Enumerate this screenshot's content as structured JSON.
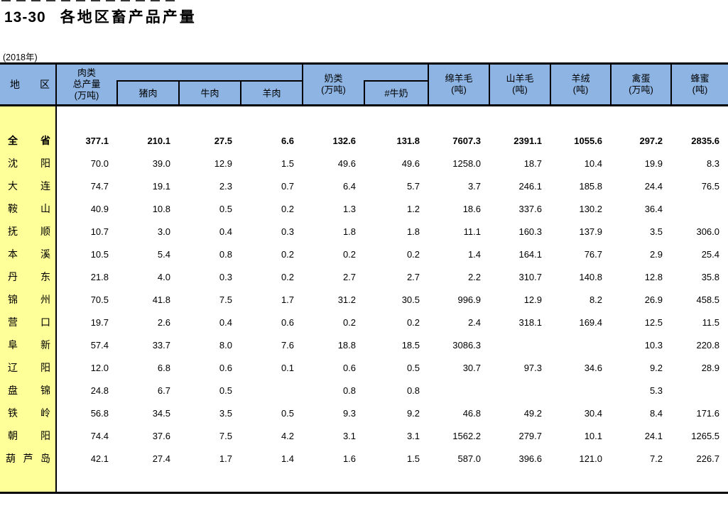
{
  "page": {
    "title_number": "13-30",
    "title_text": "各地区畜产品产量",
    "subtitle": "(2018年)"
  },
  "colors": {
    "header_bg": "#8DB4E2",
    "region_bg": "#FFFF99",
    "border": "#000000",
    "text": "#000000"
  },
  "table": {
    "header": {
      "region": [
        "地",
        "区"
      ],
      "meat_group": "肉类\n总产量\n(万吨)",
      "meat_children": [
        "猪肉",
        "牛肉",
        "羊肉"
      ],
      "milk_group": "奶类\n(万吨)",
      "milk_child": "#牛奶",
      "singles": [
        "绵羊毛\n(吨)",
        "山羊毛\n(吨)",
        "羊绒\n(吨)",
        "禽蛋\n(万吨)",
        "蜂蜜\n(吨)"
      ]
    },
    "rows": [
      {
        "region": "全省",
        "bold": true,
        "values": [
          "377.1",
          "210.1",
          "27.5",
          "6.6",
          "132.6",
          "131.8",
          "7607.3",
          "2391.1",
          "1055.6",
          "297.2",
          "2835.6"
        ]
      },
      {
        "region": "沈阳",
        "bold": false,
        "values": [
          "70.0",
          "39.0",
          "12.9",
          "1.5",
          "49.6",
          "49.6",
          "1258.0",
          "18.7",
          "10.4",
          "19.9",
          "8.3"
        ]
      },
      {
        "region": "大连",
        "bold": false,
        "values": [
          "74.7",
          "19.1",
          "2.3",
          "0.7",
          "6.4",
          "5.7",
          "3.7",
          "246.1",
          "185.8",
          "24.4",
          "76.5"
        ]
      },
      {
        "region": "鞍山",
        "bold": false,
        "values": [
          "40.9",
          "10.8",
          "0.5",
          "0.2",
          "1.3",
          "1.2",
          "18.6",
          "337.6",
          "130.2",
          "36.4",
          ""
        ]
      },
      {
        "region": "抚顺",
        "bold": false,
        "values": [
          "10.7",
          "3.0",
          "0.4",
          "0.3",
          "1.8",
          "1.8",
          "11.1",
          "160.3",
          "137.9",
          "3.5",
          "306.0"
        ]
      },
      {
        "region": "本溪",
        "bold": false,
        "values": [
          "10.5",
          "5.4",
          "0.8",
          "0.2",
          "0.2",
          "0.2",
          "1.4",
          "164.1",
          "76.7",
          "2.9",
          "25.4"
        ]
      },
      {
        "region": "丹东",
        "bold": false,
        "values": [
          "21.8",
          "4.0",
          "0.3",
          "0.2",
          "2.7",
          "2.7",
          "2.2",
          "310.7",
          "140.8",
          "12.8",
          "35.8"
        ]
      },
      {
        "region": "锦州",
        "bold": false,
        "values": [
          "70.5",
          "41.8",
          "7.5",
          "1.7",
          "31.2",
          "30.5",
          "996.9",
          "12.9",
          "8.2",
          "26.9",
          "458.5"
        ]
      },
      {
        "region": "营口",
        "bold": false,
        "values": [
          "19.7",
          "2.6",
          "0.4",
          "0.6",
          "0.2",
          "0.2",
          "2.4",
          "318.1",
          "169.4",
          "12.5",
          "11.5"
        ]
      },
      {
        "region": "阜新",
        "bold": false,
        "values": [
          "57.4",
          "33.7",
          "8.0",
          "7.6",
          "18.8",
          "18.5",
          "3086.3",
          "",
          "",
          "10.3",
          "220.8"
        ]
      },
      {
        "region": "辽阳",
        "bold": false,
        "values": [
          "12.0",
          "6.8",
          "0.6",
          "0.1",
          "0.6",
          "0.5",
          "30.7",
          "97.3",
          "34.6",
          "9.2",
          "28.9"
        ]
      },
      {
        "region": "盘锦",
        "bold": false,
        "values": [
          "24.8",
          "6.7",
          "0.5",
          "",
          "0.8",
          "0.8",
          "",
          "",
          "",
          "5.3",
          ""
        ]
      },
      {
        "region": "铁岭",
        "bold": false,
        "values": [
          "56.8",
          "34.5",
          "3.5",
          "0.5",
          "9.3",
          "9.2",
          "46.8",
          "49.2",
          "30.4",
          "8.4",
          "171.6"
        ]
      },
      {
        "region": "朝阳",
        "bold": false,
        "values": [
          "74.4",
          "37.6",
          "7.5",
          "4.2",
          "3.1",
          "3.1",
          "1562.2",
          "279.7",
          "10.1",
          "24.1",
          "1265.5"
        ]
      },
      {
        "region": "葫芦岛",
        "bold": false,
        "values": [
          "42.1",
          "27.4",
          "1.7",
          "1.4",
          "1.6",
          "1.5",
          "587.0",
          "396.6",
          "121.0",
          "7.2",
          "226.7"
        ]
      }
    ]
  }
}
